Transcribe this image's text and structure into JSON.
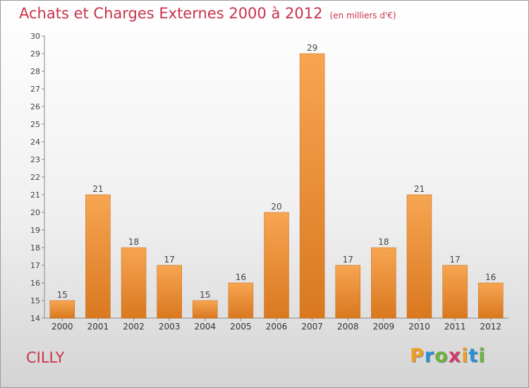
{
  "title": "Achats et Charges Externes 2000 à 2012",
  "unit": "(en milliers d'€)",
  "town": "CILLY",
  "logo": {
    "letters": [
      "P",
      "r",
      "o",
      "x",
      "i",
      "t",
      "i"
    ],
    "colors": [
      "#f0a020",
      "#2a8fd6",
      "#6cb33f",
      "#d43a6a",
      "#f0a020",
      "#2a8fd6",
      "#6cb33f"
    ]
  },
  "colors": {
    "bar_light": "#f7a552",
    "bar_dark": "#d9781f",
    "accent": "#c8334b"
  },
  "chart_data": {
    "type": "bar",
    "categories": [
      "2000",
      "2001",
      "2002",
      "2003",
      "2004",
      "2005",
      "2006",
      "2007",
      "2008",
      "2009",
      "2010",
      "2011",
      "2012"
    ],
    "values": [
      15,
      21,
      18,
      17,
      15,
      16,
      20,
      29,
      17,
      18,
      21,
      17,
      16
    ],
    "ylim": [
      14,
      30
    ],
    "yticks": [
      14,
      15,
      16,
      17,
      18,
      19,
      20,
      21,
      22,
      23,
      24,
      25,
      26,
      27,
      28,
      29,
      30
    ],
    "grid": false
  }
}
